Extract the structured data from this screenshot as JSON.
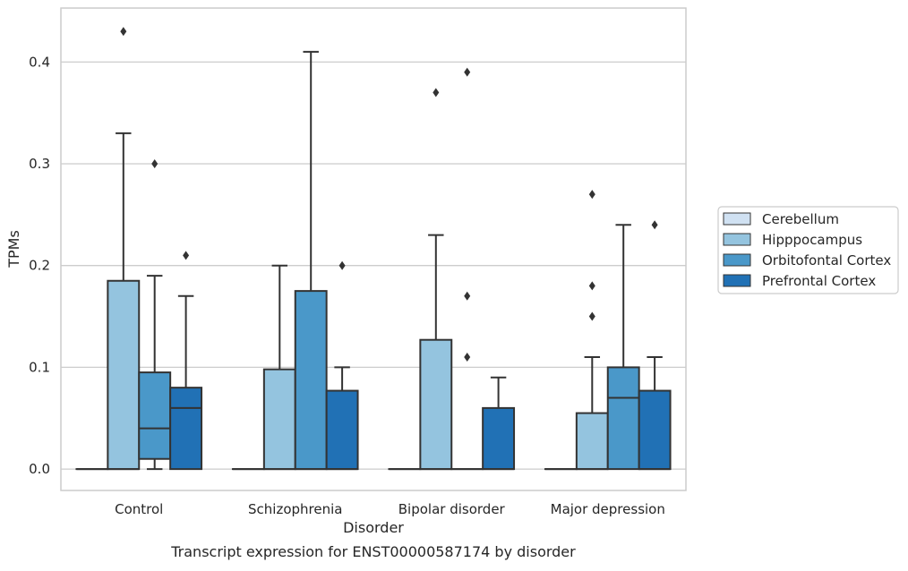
{
  "chart_data": {
    "type": "box",
    "caption": "Transcript expression for ENST00000587174 by disorder",
    "xlabel": "Disorder",
    "ylabel": "TPMs",
    "ylim": [
      -0.021,
      0.453
    ],
    "yticks": [
      0.0,
      0.1,
      0.2,
      0.3,
      0.4
    ],
    "ytick_labels": [
      "0.0",
      "0.1",
      "0.2",
      "0.3",
      "0.4"
    ],
    "grid": "horizontal",
    "legend_position": "right",
    "categories": [
      "Control",
      "Schizophrenia",
      "Bipolar disorder",
      "Major depression"
    ],
    "series": [
      {
        "name": "Cerebellum",
        "color": "#d0e1f2",
        "boxes": [
          {
            "min": 0,
            "q1": 0,
            "median": 0,
            "q3": 0,
            "max": 0,
            "outliers": []
          },
          {
            "min": 0,
            "q1": 0,
            "median": 0,
            "q3": 0,
            "max": 0,
            "outliers": []
          },
          {
            "min": 0,
            "q1": 0,
            "median": 0,
            "q3": 0,
            "max": 0,
            "outliers": []
          },
          {
            "min": 0,
            "q1": 0,
            "median": 0,
            "q3": 0,
            "max": 0,
            "outliers": []
          }
        ]
      },
      {
        "name": "Hipppocampus",
        "color": "#94c4df",
        "boxes": [
          {
            "min": 0,
            "q1": 0,
            "median": 0,
            "q3": 0.185,
            "max": 0.33,
            "outliers": [
              0.43
            ]
          },
          {
            "min": 0,
            "q1": 0,
            "median": 0,
            "q3": 0.098,
            "max": 0.2,
            "outliers": []
          },
          {
            "min": 0,
            "q1": 0,
            "median": 0,
            "q3": 0.127,
            "max": 0.23,
            "outliers": [
              0.37
            ]
          },
          {
            "min": 0,
            "q1": 0,
            "median": 0,
            "q3": 0.055,
            "max": 0.11,
            "outliers": [
              0.15,
              0.18,
              0.27
            ]
          }
        ]
      },
      {
        "name": "Orbitofontal Cortex",
        "color": "#4a98c9",
        "boxes": [
          {
            "min": 0,
            "q1": 0.01,
            "median": 0.04,
            "q3": 0.095,
            "max": 0.19,
            "outliers": [
              0.3
            ]
          },
          {
            "min": 0,
            "q1": 0,
            "median": 0,
            "q3": 0.175,
            "max": 0.41,
            "outliers": []
          },
          {
            "min": 0,
            "q1": 0,
            "median": 0,
            "q3": 0,
            "max": 0,
            "outliers": [
              0.11,
              0.17,
              0.39
            ]
          },
          {
            "min": 0,
            "q1": 0,
            "median": 0.07,
            "q3": 0.1,
            "max": 0.24,
            "outliers": []
          }
        ]
      },
      {
        "name": "Prefrontal Cortex",
        "color": "#2171b5",
        "boxes": [
          {
            "min": 0,
            "q1": 0,
            "median": 0.06,
            "q3": 0.08,
            "max": 0.17,
            "outliers": [
              0.21
            ]
          },
          {
            "min": 0,
            "q1": 0,
            "median": 0,
            "q3": 0.077,
            "max": 0.1,
            "outliers": [
              0.2
            ]
          },
          {
            "min": 0,
            "q1": 0,
            "median": 0,
            "q3": 0.06,
            "max": 0.09,
            "outliers": []
          },
          {
            "min": 0,
            "q1": 0,
            "median": 0,
            "q3": 0.077,
            "max": 0.11,
            "outliers": [
              0.24
            ]
          }
        ]
      }
    ]
  }
}
